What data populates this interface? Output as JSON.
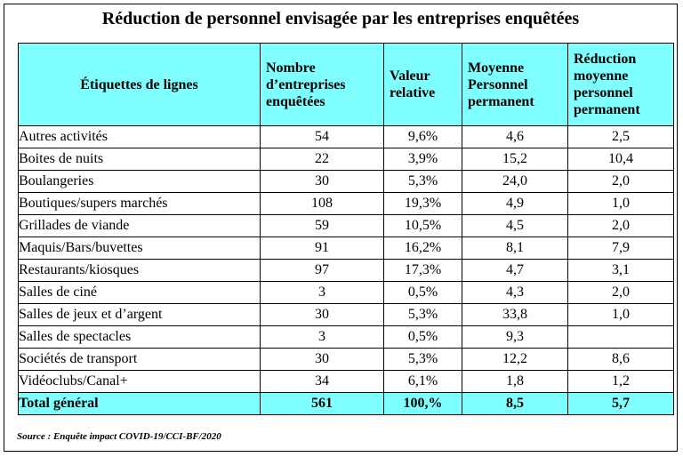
{
  "title": "Réduction de personnel envisagée par les entreprises enquêtées",
  "table": {
    "headers": [
      "Étiquettes de lignes",
      "Nombre d’entreprises enquêtées",
      "Valeur relative",
      "Moyenne Personnel permanent",
      "Réduction moyenne personnel permanent"
    ],
    "rows": [
      [
        "Autres activités",
        "54",
        "9,6%",
        "4,6",
        "2,5"
      ],
      [
        "Boites de nuits",
        "22",
        "3,9%",
        "15,2",
        "10,4"
      ],
      [
        "Boulangeries",
        "30",
        "5,3%",
        "24,0",
        "2,0"
      ],
      [
        "Boutiques/supers marchés",
        "108",
        "19,3%",
        "4,9",
        "1,0"
      ],
      [
        "Grillades de viande",
        "59",
        "10,5%",
        "4,5",
        "2,0"
      ],
      [
        "Maquis/Bars/buvettes",
        "91",
        "16,2%",
        "8,1",
        "7,9"
      ],
      [
        "Restaurants/kiosques",
        "97",
        "17,3%",
        "4,7",
        "3,1"
      ],
      [
        "Salles de ciné",
        "3",
        "0,5%",
        "4,3",
        "2,0"
      ],
      [
        "Salles de jeux et d’argent",
        "30",
        "5,3%",
        "33,8",
        "1,0"
      ],
      [
        "Salles de spectacles",
        "3",
        "0,5%",
        "9,3",
        ""
      ],
      [
        "Sociétés de transport",
        "30",
        "5,3%",
        "12,2",
        "8,6"
      ],
      [
        "Vidéoclubs/Canal+",
        "34",
        "6,1%",
        "1,8",
        "1,2"
      ]
    ],
    "total": [
      "Total général",
      "561",
      "100,%",
      "8,5",
      "5,7"
    ]
  },
  "source": "Source : Enquête impact COVID-19/CCI-BF/2020",
  "colors": {
    "header_bg": "#7fffff",
    "border": "#000000"
  }
}
